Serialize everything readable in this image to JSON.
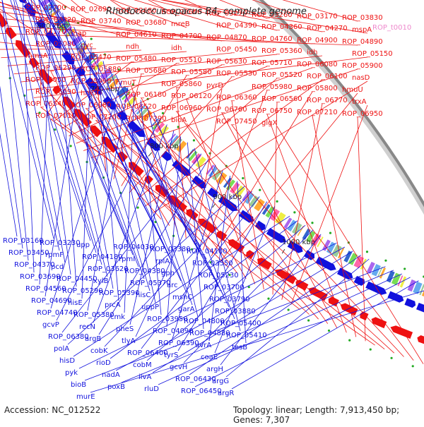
{
  "title": "Rhodococcus opacus B4, complete genome",
  "footer": {
    "accession": "Accession: NC_012522",
    "summary": "Topology: linear; Length: 7,913,450 bp; Genes: 7,307"
  },
  "colors": {
    "forward": "#ee1111",
    "reverse": "#1111dd",
    "pink_label": "#ee88cc",
    "backbone": "#888888"
  },
  "ticks": [
    "300 kbp",
    "400 kbp",
    "500 kbp",
    "600 kbp",
    "700 kbp",
    "800 kbp",
    "900 kbp",
    "1000 kbp"
  ],
  "forward_labels": [
    "ROP_02700",
    "ROP_02690",
    "ROP_02680",
    "ROP_02660",
    "ROP_03270",
    "ROP_03260",
    "ROP_03170",
    "ROP_03830",
    "ROP_03820",
    "ROP_03740",
    "ROP_03680",
    "mreB",
    "ROP_04390",
    "ROP_04360",
    "ROP_04270",
    "mspA",
    "ROP_04170",
    "map",
    "ROP_04610",
    "ROP_04700",
    "ROP_04870",
    "ROP_04760",
    "ROP_04900",
    "ROP_04890",
    "ROP_05080",
    "pyc",
    "ndh",
    "idh",
    "ROP_05450",
    "ROP_05360",
    "idh",
    "ROP_05150",
    "mmsA",
    "ROP_05470",
    "ROP_05480",
    "ROP_05510",
    "ROP_05630",
    "ROP_05710",
    "ROP_06080",
    "ROP_05900",
    "ROP_06290",
    "ROP_05880",
    "ROP_05680",
    "ROP_05580",
    "ROP_05530",
    "ROP_05520",
    "ROP_06100",
    "nasD",
    "ROP_06050",
    "ROP_05990",
    "hmuT",
    "ROP_05860",
    "pyrD",
    "ROP_05980",
    "ROP_05800",
    "hmuU",
    "ROP_06090",
    "hmuO",
    "ROP_06180",
    "ROP_06120",
    "ROP_06360",
    "ROP_06560",
    "ROP_06770",
    "trxA",
    "ROP_06540",
    "ROP_06980",
    "ROP_06520",
    "ROP_06960",
    "ROP_06760",
    "ROP_06750",
    "ROP_07210",
    "ROP_06950",
    "ROP_07010",
    "ROP_07200",
    "ROP_07290",
    "bioA",
    "ROP_07450",
    "glgX"
  ],
  "pink_labels": [
    "ROP_t0010"
  ],
  "reverse_labels": [
    "ROP_03160",
    "ROP_03230",
    "upp",
    "ROP_04030",
    "ROP_03380",
    "ROP_04100",
    "ROP_03450",
    "rpmF",
    "ROP_04180",
    "rpmI",
    "rplA",
    "ROP_03550",
    "ROP_04370",
    "pcd",
    "ROP_03620",
    "ROP_04380",
    "gph",
    "ROP_05230",
    "ROP_03690",
    "ROP_04450",
    "xylB",
    "ROP_05370",
    "arc",
    "ROP_03700",
    "ROP_04560",
    "ROP_05290",
    "ROP_05390",
    "hisC",
    "mshC",
    "ROP_03790",
    "ROP_04690",
    "hisE",
    "prcA",
    "uppP",
    "garA",
    "ROP_03880",
    "ROP_04740",
    "ROP_05380",
    "cmk",
    "ROP_03950",
    "ROP_04800",
    "ROP_05400",
    "gcvP",
    "recN",
    "pheS",
    "ROP_04090",
    "ROP_04880",
    "ROP_05410",
    "ROP_06380",
    "argB",
    "tlyA",
    "ROP_06390",
    "uvrA",
    "tesB",
    "polA",
    "cobK",
    "ROP_06400",
    "tyrS",
    "coaE",
    "uvrB",
    "hisD",
    "rioD",
    "cobM",
    "gcvH",
    "argH",
    "gltD",
    "pyk",
    "nadA",
    "ilvA",
    "ROP_06430",
    "argG",
    "rpsA",
    "bioB",
    "poxB",
    "rluD",
    "ROP_06450",
    "argR",
    "argF",
    "murE"
  ]
}
